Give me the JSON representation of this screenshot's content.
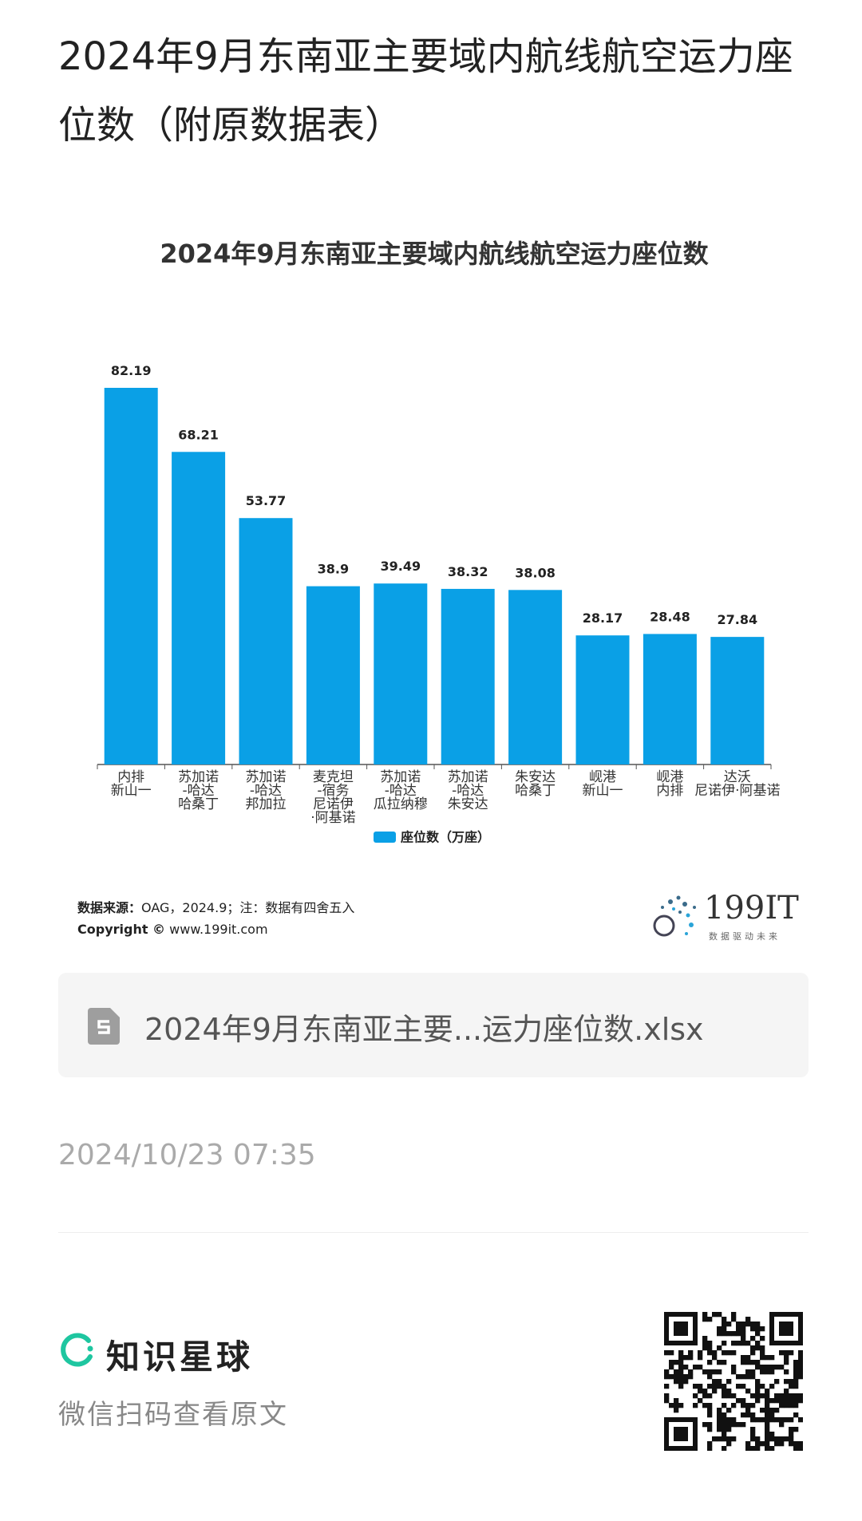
{
  "header": {
    "title": "2024年9月东南亚主要域内航线航空运力座位数（附原数据表）"
  },
  "chart_data": {
    "type": "bar",
    "title": "2024年9月东南亚主要域内航线航空运力座位数",
    "categories": [
      "内排\n新山一",
      "苏加诺\n-哈达\n哈桑丁",
      "苏加诺\n-哈达\n邦加拉",
      "麦克坦\n-宿务\n尼诺伊\n·阿基诺",
      "苏加诺\n-哈达\n瓜拉纳穆",
      "苏加诺\n-哈达\n朱安达",
      "朱安达\n哈桑丁",
      "岘港\n新山一",
      "岘港\n内排",
      "达沃\n尼诺伊·阿基诺"
    ],
    "series": [
      {
        "name": "座位数（万座）",
        "color": "#0aa0e6",
        "values": [
          82.19,
          68.21,
          53.77,
          38.9,
          39.49,
          38.32,
          38.08,
          28.17,
          28.48,
          27.84
        ]
      }
    ],
    "legend": "bottom"
  },
  "source": {
    "label": "数据来源：",
    "text": "OAG，2024.9；注：数据有四舍五入",
    "copyright": "Copyright ©",
    "site": "www.199it.com",
    "logo": "199IT",
    "slogan": "数据驱动未来"
  },
  "attachment": {
    "filename": "2024年9月东南亚主要...运力座位数.xlsx"
  },
  "date": "2024/10/23 07:35",
  "footer": {
    "brand": "知识星球",
    "hint": "微信扫码查看原文"
  }
}
